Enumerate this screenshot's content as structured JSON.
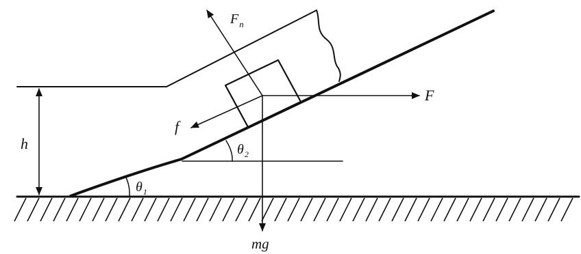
{
  "labels": {
    "normal_force": {
      "main": "F",
      "sub": "n"
    },
    "applied_force": "F",
    "friction": "f",
    "height": "h",
    "angle_lower": {
      "main": "θ",
      "sub": "1"
    },
    "angle_upper": {
      "main": "θ",
      "sub": "2"
    },
    "weight": "mg"
  }
}
